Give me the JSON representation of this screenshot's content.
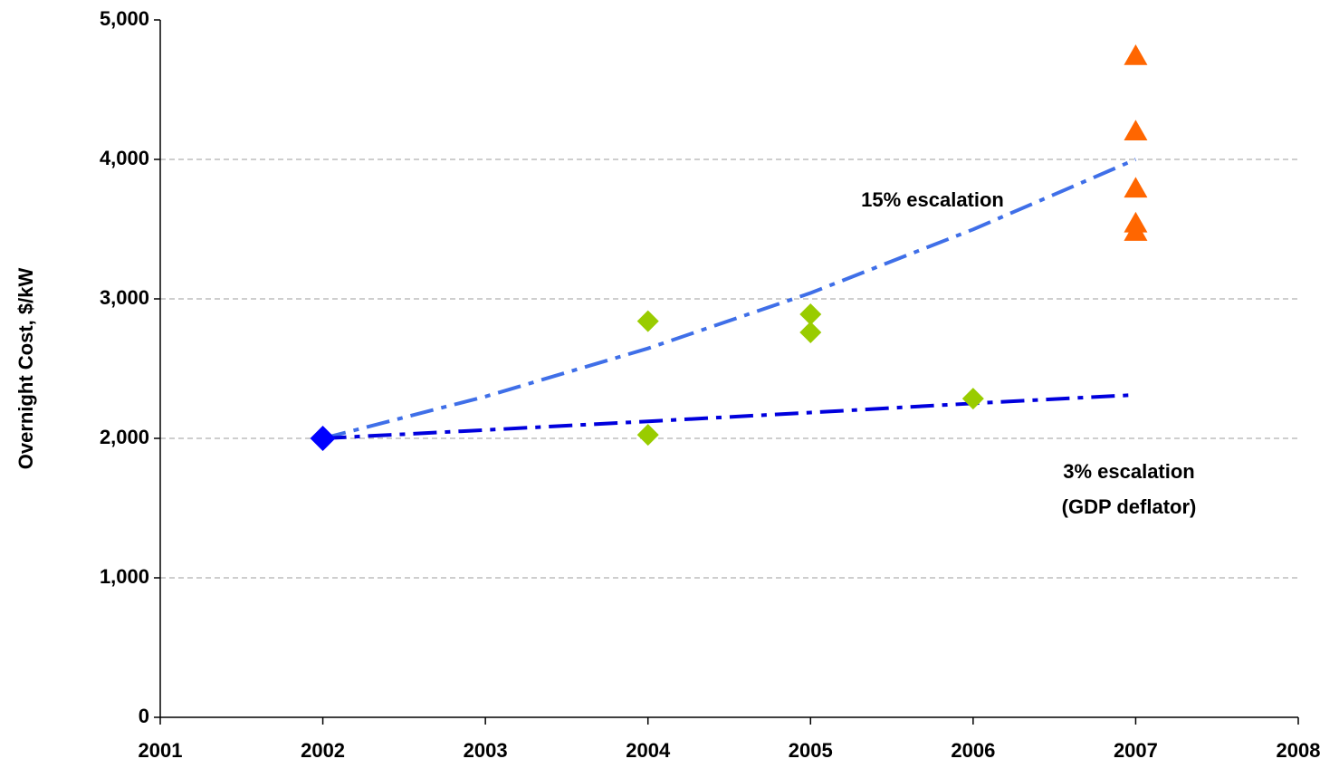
{
  "chart_data": {
    "type": "scatter",
    "ylabel": "Overnight Cost, $/kW",
    "xlim": [
      2001,
      2008
    ],
    "xticks": [
      2001,
      2002,
      2003,
      2004,
      2005,
      2006,
      2007,
      2008
    ],
    "ylim": [
      0,
      5000
    ],
    "yticks": [
      0,
      {
        "value": 1000,
        "label": "1,000"
      },
      {
        "value": 2000,
        "label": "2,000"
      },
      {
        "value": 3000,
        "label": "3,000"
      },
      {
        "value": 4000,
        "label": "4,000"
      },
      {
        "value": 5000,
        "label": "5,000"
      }
    ],
    "grid": true,
    "series": [
      {
        "mode": "line",
        "color": "#3f6fe8",
        "x": [
          2002,
          2003,
          2004,
          2005,
          2006,
          2007
        ],
        "values": [
          2000,
          2300,
          2645,
          3042,
          3498,
          4000
        ]
      },
      {
        "mode": "line",
        "color": "#0000dd",
        "x": [
          2002,
          2003,
          2004,
          2005,
          2006,
          2007
        ],
        "values": [
          2000,
          2060,
          2122,
          2185,
          2251,
          2312
        ]
      },
      {
        "mode": "markers",
        "marker": "diamond",
        "size": 14,
        "color": "#0000ff",
        "x": [
          2002
        ],
        "values": [
          2000
        ]
      },
      {
        "mode": "markers",
        "marker": "diamond",
        "size": 12,
        "color": "#99cc00",
        "x": [
          2004,
          2004,
          2005,
          2005,
          2006
        ],
        "values": [
          2840,
          2025,
          2890,
          2760,
          2285
        ]
      },
      {
        "mode": "markers",
        "marker": "triangle",
        "size": 13,
        "color": "#ff6600",
        "x": [
          2007,
          2007,
          2007,
          2007,
          2007
        ],
        "values": [
          4740,
          4200,
          3790,
          3540,
          3480
        ]
      }
    ],
    "annotations": [
      "15% escalation",
      "3% escalation",
      "(GDP deflator)"
    ]
  }
}
